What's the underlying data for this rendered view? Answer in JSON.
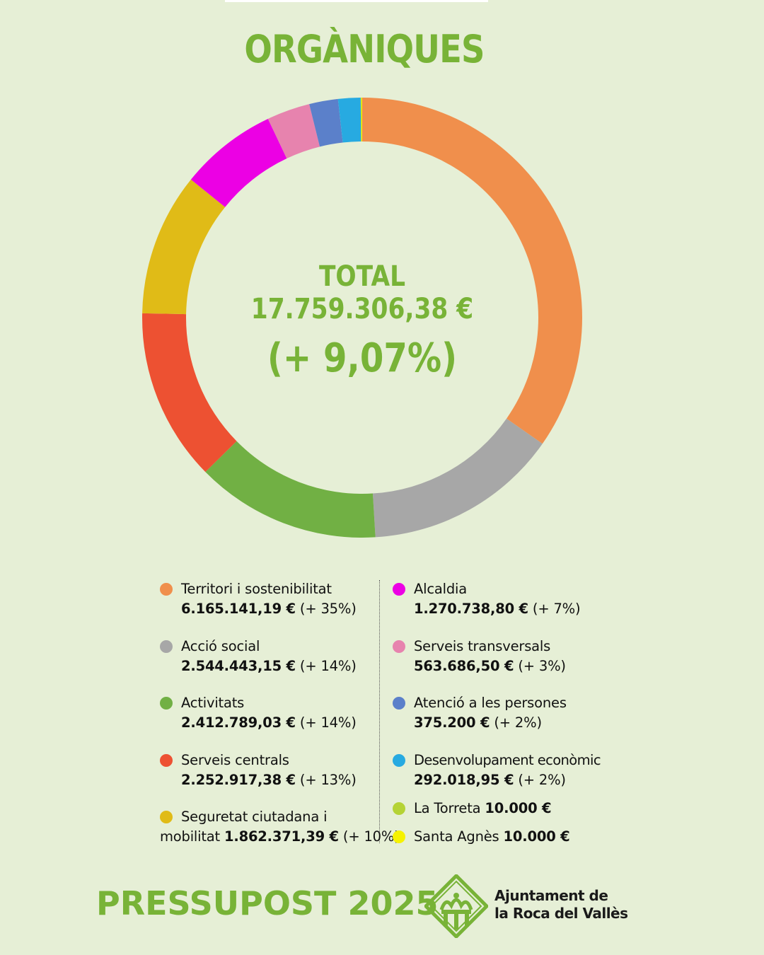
{
  "header": {
    "title": "ORGÀNIQUES"
  },
  "center": {
    "label": "TOTAL",
    "value": "17.759.306,38 €",
    "change": "(+ 9,07%)"
  },
  "chart_data": {
    "type": "pie",
    "title": "ORGÀNIQUES",
    "categories": [
      "Territori i sostenibilitat",
      "Acció social",
      "Activitats",
      "Serveis centrals",
      "Seguretat ciutadana i mobilitat",
      "Alcaldia",
      "Serveis transversals",
      "Atenció a les persones",
      "Desenvolupament econòmic",
      "La Torreta",
      "Santa Agnès"
    ],
    "values": [
      6165141.19,
      2544443.15,
      2412789.03,
      2252917.38,
      1862371.39,
      1270738.8,
      563686.5,
      375200,
      292018.95,
      10000,
      10000
    ],
    "colors": [
      "#f08f4c",
      "#a7a7a7",
      "#71b044",
      "#ed5132",
      "#e0bb17",
      "#ec00e4",
      "#e783ae",
      "#5b80ca",
      "#27aae1",
      "#b5d335",
      "#f6f200"
    ],
    "legend_placement": "bottom"
  },
  "legend": {
    "left": [
      {
        "name": "Territori i sostenibilitat",
        "amount": "6.165.141,19 €",
        "change": "(+ 35%)"
      },
      {
        "name": "Acció social",
        "amount": "2.544.443,15 €",
        "change": "(+ 14%)"
      },
      {
        "name": "Activitats",
        "amount": "2.412.789,03 €",
        "change": "(+ 14%)"
      },
      {
        "name": "Serveis centrals",
        "amount": "2.252.917,38 €",
        "change": "(+ 13%)"
      },
      {
        "name_line1": "Seguretat ciutadana i",
        "name_line2": "mobilitat",
        "amount": "1.862.371,39 €",
        "change": "(+ 10%)"
      }
    ],
    "right": [
      {
        "name": "Alcaldia",
        "amount": "1.270.738,80 €",
        "change": "(+ 7%)"
      },
      {
        "name": "Serveis transversals",
        "amount": "563.686,50 €",
        "change": "(+ 3%)"
      },
      {
        "name": "Atenció a les persones",
        "amount": "375.200 €",
        "change": "(+ 2%)"
      },
      {
        "name": "Desenvolupament econòmic",
        "amount": "292.018,95 €",
        "change": "(+ 2%)"
      },
      {
        "name": "La Torreta",
        "amount": "10.000 €"
      },
      {
        "name": "Santa Agnès",
        "amount": "10.000 €"
      }
    ]
  },
  "footer": {
    "title": "PRESSUPOST 2025",
    "org_line1": "Ajuntament de",
    "org_line2": "la Roca del Vallès"
  }
}
